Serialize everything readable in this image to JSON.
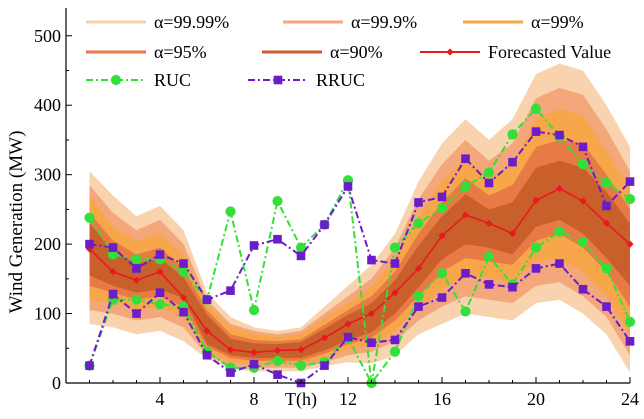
{
  "chart_data": {
    "type": "line",
    "ylabel": "Wind Generation (MW)",
    "xlabel": "T(h)",
    "xlim": [
      0,
      24
    ],
    "ylim": [
      0,
      540
    ],
    "x_ticks": [
      4,
      8,
      12,
      16,
      20,
      24
    ],
    "y_ticks": [
      0,
      100,
      200,
      300,
      400,
      500
    ],
    "x": [
      1,
      2,
      3,
      4,
      5,
      6,
      7,
      8,
      9,
      10,
      11,
      12,
      13,
      14,
      15,
      16,
      17,
      18,
      19,
      20,
      21,
      22,
      23,
      24
    ],
    "legend_position": "top",
    "bands": [
      {
        "name": "α=99.99%",
        "color": "#f9d3ae",
        "lower": [
          85,
          80,
          70,
          75,
          60,
          35,
          20,
          17,
          17,
          17,
          24,
          30,
          28,
          40,
          70,
          85,
          100,
          95,
          90,
          115,
          120,
          100,
          70,
          15
        ],
        "upper": [
          305,
          270,
          240,
          255,
          220,
          130,
          95,
          80,
          75,
          80,
          110,
          140,
          170,
          215,
          290,
          345,
          380,
          350,
          380,
          445,
          460,
          450,
          400,
          340
        ]
      },
      {
        "name": "α=99.9%",
        "color": "#f3a77a",
        "lower": [
          105,
          100,
          90,
          95,
          80,
          40,
          25,
          22,
          22,
          22,
          30,
          40,
          45,
          60,
          90,
          110,
          125,
          120,
          115,
          140,
          145,
          125,
          95,
          40
        ],
        "upper": [
          285,
          245,
          220,
          235,
          200,
          120,
          85,
          75,
          70,
          75,
          100,
          125,
          150,
          195,
          265,
          315,
          350,
          320,
          345,
          410,
          425,
          415,
          365,
          305
        ]
      },
      {
        "name": "α=99%",
        "color": "#f7a64a",
        "lower": [
          120,
          115,
          105,
          110,
          95,
          45,
          30,
          27,
          27,
          27,
          36,
          48,
          55,
          75,
          110,
          135,
          155,
          150,
          145,
          175,
          180,
          160,
          125,
          70
        ],
        "upper": [
          270,
          225,
          205,
          215,
          185,
          112,
          80,
          70,
          66,
          70,
          93,
          115,
          138,
          178,
          240,
          290,
          325,
          295,
          315,
          380,
          395,
          385,
          335,
          280
        ]
      },
      {
        "name": "α=95%",
        "color": "#e77a45",
        "lower": [
          140,
          130,
          120,
          125,
          110,
          52,
          36,
          32,
          32,
          32,
          42,
          56,
          65,
          90,
          125,
          160,
          180,
          175,
          170,
          205,
          215,
          195,
          160,
          110
        ],
        "upper": [
          245,
          205,
          185,
          195,
          165,
          105,
          70,
          62,
          60,
          63,
          84,
          105,
          125,
          160,
          215,
          260,
          295,
          270,
          285,
          340,
          350,
          345,
          300,
          250
        ]
      },
      {
        "name": "α=90%",
        "color": "#c9602c",
        "lower": [
          155,
          140,
          130,
          135,
          122,
          56,
          40,
          36,
          36,
          36,
          47,
          62,
          73,
          100,
          138,
          178,
          200,
          195,
          185,
          225,
          235,
          215,
          180,
          140
        ],
        "upper": [
          230,
          190,
          172,
          180,
          152,
          98,
          64,
          57,
          56,
          59,
          78,
          98,
          115,
          148,
          198,
          240,
          272,
          250,
          260,
          310,
          320,
          310,
          275,
          230
        ]
      }
    ],
    "series": [
      {
        "name": "Forecasted Value",
        "color": "#e8191f",
        "marker": "diamond",
        "values": [
          193,
          160,
          148,
          160,
          123,
          75,
          48,
          44,
          47,
          48,
          65,
          85,
          100,
          130,
          165,
          212,
          242,
          230,
          215,
          263,
          280,
          262,
          230,
          200
        ]
      },
      {
        "name": "RUC",
        "color": "#33e03a",
        "marker": "circle",
        "dash": "dashdot",
        "values": [
          238,
          185,
          178,
          178,
          160,
          120,
          247,
          105,
          262,
          195,
          228,
          292,
          0,
          195,
          230,
          252,
          283,
          303,
          358,
          395,
          355,
          315,
          288,
          265
        ]
      },
      {
        "name": "RRUC",
        "color": "#6a1dc8",
        "marker": "square",
        "dash": "dashdot",
        "values": [
          200,
          195,
          165,
          185,
          172,
          120,
          133,
          198,
          207,
          183,
          228,
          283,
          177,
          172,
          260,
          268,
          323,
          288,
          318,
          362,
          357,
          340,
          255,
          290
        ]
      },
      {
        "name": "RUC_lower",
        "color": "#33e03a",
        "marker": "circle",
        "dash": "dashdot",
        "legend": false,
        "values": [
          25,
          120,
          120,
          113,
          110,
          45,
          22,
          22,
          32,
          25,
          30,
          65,
          0,
          45,
          125,
          158,
          103,
          182,
          142,
          195,
          218,
          203,
          165,
          88
        ]
      },
      {
        "name": "RRUC_lower",
        "color": "#6a1dc8",
        "marker": "square",
        "dash": "dashdot",
        "legend": false,
        "values": [
          25,
          128,
          100,
          130,
          102,
          40,
          15,
          27,
          12,
          0,
          25,
          66,
          58,
          62,
          110,
          123,
          158,
          142,
          138,
          165,
          172,
          135,
          110,
          60
        ]
      }
    ]
  },
  "legend": {
    "entries": [
      {
        "label": "α=99.99%",
        "color": "#f9d3ae",
        "kind": "band"
      },
      {
        "label": "α=99.9%",
        "color": "#f3a77a",
        "kind": "band"
      },
      {
        "label": "α=99%",
        "color": "#f7a64a",
        "kind": "band"
      },
      {
        "label": "α=95%",
        "color": "#e77a45",
        "kind": "band"
      },
      {
        "label": "α=90%",
        "color": "#c9602c",
        "kind": "band"
      },
      {
        "label": "Forecasted Value",
        "color": "#e8191f",
        "kind": "line-diamond"
      },
      {
        "label": "RUC",
        "color": "#33e03a",
        "kind": "line-circle"
      },
      {
        "label": "RRUC",
        "color": "#6a1dc8",
        "kind": "line-square"
      }
    ]
  }
}
